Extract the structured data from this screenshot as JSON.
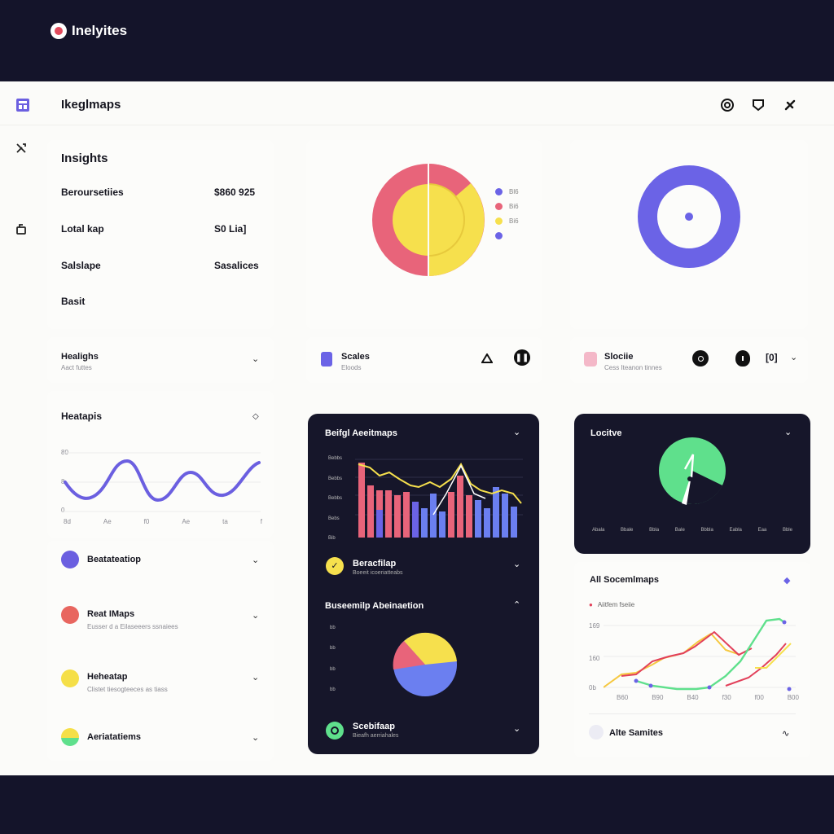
{
  "brand": {
    "name": "Inelyites"
  },
  "header": {
    "title": "Ikeglmaps"
  },
  "insights": {
    "title": "Insights",
    "rows": [
      {
        "label": "Beroursetiies",
        "value": "$860 925"
      },
      {
        "label": "Lotal kap",
        "value": "S0 Lia]"
      },
      {
        "label": "Salslape",
        "value": "Sasalices"
      },
      {
        "label": "Basit",
        "value": ""
      }
    ]
  },
  "row_cards": [
    {
      "title": "Healighs",
      "subtitle": "Aact futtes"
    },
    {
      "title": "Scales",
      "subtitle": "Eloods"
    },
    {
      "title": "Slociie",
      "subtitle": "Cess Iteanon tinnes"
    }
  ],
  "heatmaps": {
    "title": "Heatapis",
    "y_labels": [
      "80",
      "8",
      "0"
    ],
    "x_labels": [
      "8d",
      "Ae",
      "f0",
      "Ae",
      "ta",
      "f"
    ]
  },
  "left_list": [
    {
      "title": "Beatateatiop",
      "subtitle": "",
      "color": "#6b5fe0"
    },
    {
      "title": "Reat IMaps",
      "subtitle": "Eusser d a Eilaseeers ssnaiees",
      "color": "#e8665f"
    },
    {
      "title": "Heheatap",
      "subtitle": "Clistet tiesogteeces as tiass",
      "color": "#f5df48"
    },
    {
      "title": "Aeriatatiems",
      "subtitle": "",
      "color": "#f5df48"
    }
  ],
  "donut_legend": [
    "Bl6",
    "Bi6",
    "Bi6",
    ""
  ],
  "colors": {
    "purple": "#6b63e6",
    "pink": "#e8647a",
    "yellow": "#f6e04d",
    "green": "#5fe08c",
    "red": "#e2405a",
    "dark": "#16162a"
  },
  "dark_panel": {
    "title": "Beifgl Aeeitmaps",
    "y_labels": [
      "Bebbs",
      "Bebbs",
      "Bebbs",
      "Bebs",
      "Bib"
    ],
    "item": {
      "title": "Beracfilap",
      "subtitle": "Boeeit icoeriatteabs"
    },
    "pie_title": "Buseemilp Abeinaetion",
    "pie_y_labels": [
      "bb",
      "bb",
      "bb",
      "bb"
    ],
    "footer": {
      "title": "Scebifaap",
      "subtitle": "Bieafh aerriahales"
    }
  },
  "locitve": {
    "title": "Locitve",
    "x_labels": [
      "Abala",
      "Bbale",
      "Bbla",
      "Bale",
      "Bbbla",
      "Eabla",
      "Eaa",
      "Bble"
    ]
  },
  "all_chart": {
    "title": "All Socemlmaps",
    "legend": "Aiitfem fseiie",
    "y_labels": [
      "169",
      "160",
      "0b"
    ],
    "x_labels": [
      "B60",
      "B90",
      "B40",
      "f30",
      "f00",
      "B00"
    ],
    "footer": "Alte Samites"
  }
}
